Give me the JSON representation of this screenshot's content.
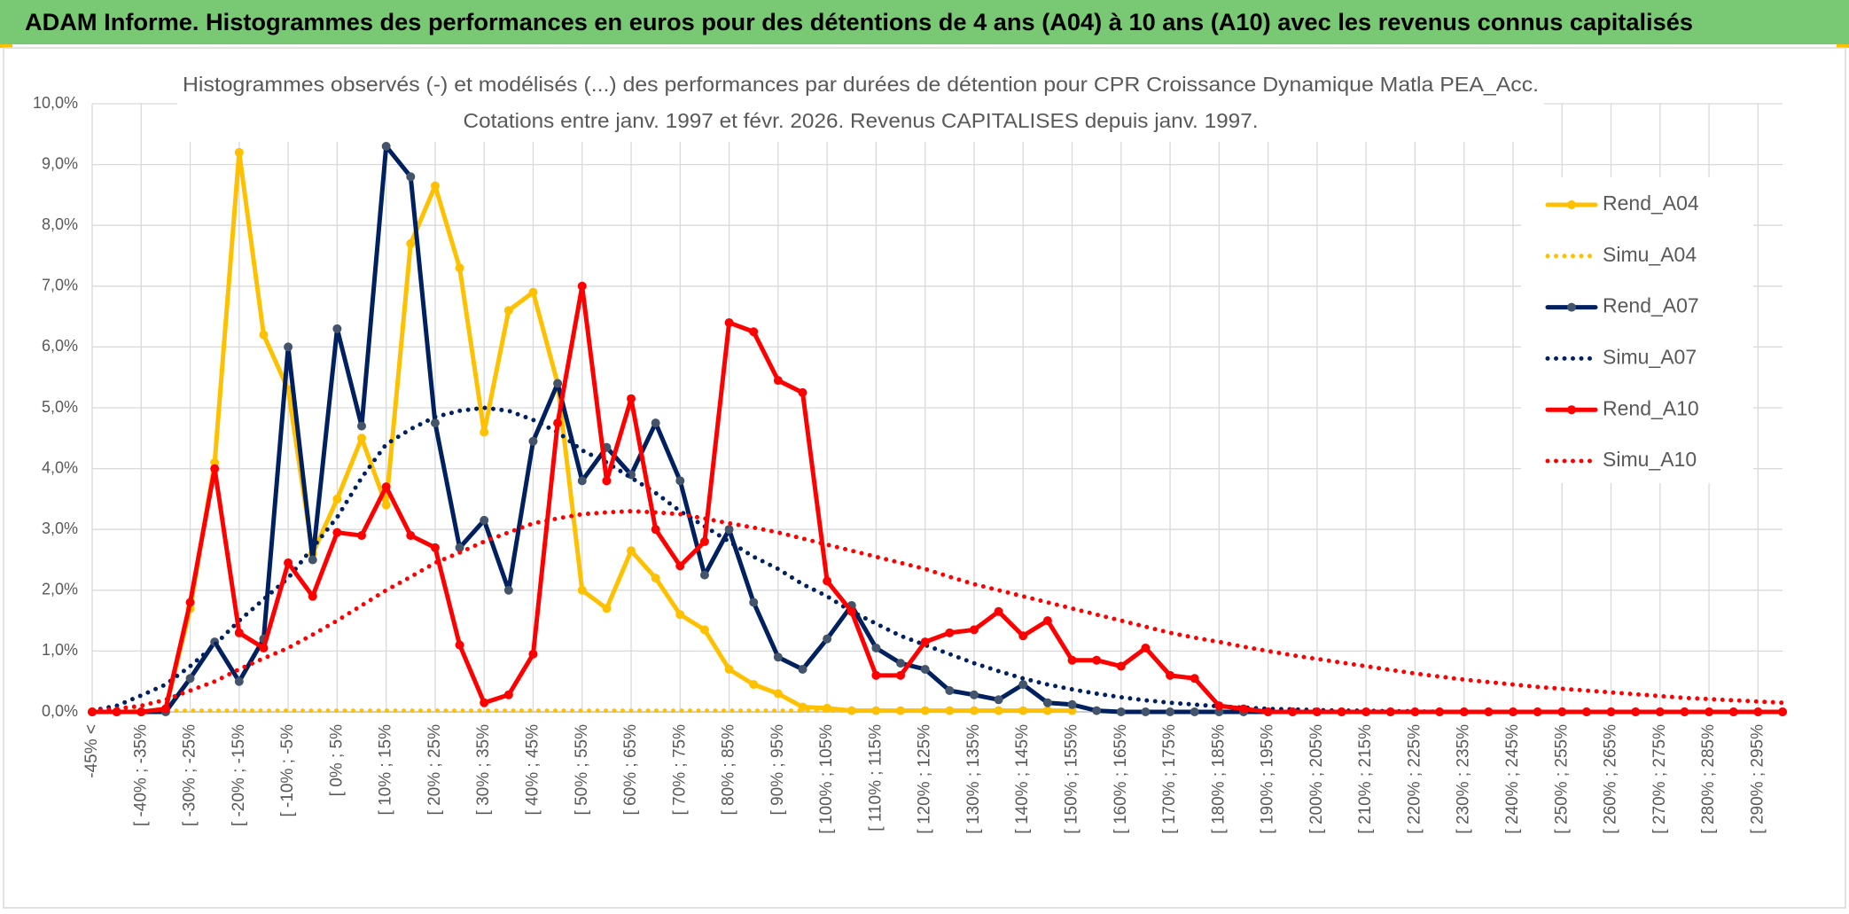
{
  "chart_data": {
    "type": "line",
    "title": "ADAM Informe. Histogrammes des performances en euros pour des détentions de 4 ans (A04) à 10 ans (A10) avec les revenus connus capitalisés",
    "subtitle": [
      "Histogrammes observés (-) et modélisés (...) des performances par durées de détention pour CPR Croissance Dynamique Matla PEA_Acc.",
      "Cotations entre janv. 1997 et févr. 2026. Revenus CAPITALISES depuis janv. 1997."
    ],
    "categories": [
      "-45% <",
      null,
      "[ -40% ; -35%",
      null,
      "[ -30% ; -25%",
      null,
      "[ -20% ; -15%",
      null,
      "[ -10% ; -5%",
      null,
      "[ 0% ; 5%",
      null,
      "[ 10% ; 15%",
      null,
      "[ 20% ; 25%",
      null,
      "[ 30% ; 35%",
      null,
      "[ 40% ; 45%",
      null,
      "[ 50% ; 55%",
      null,
      "[ 60% ; 65%",
      null,
      "[ 70% ; 75%",
      null,
      "[ 80% ; 85%",
      null,
      "[ 90% ; 95%",
      null,
      "[ 100% ; 105%",
      null,
      "[ 110% ; 115%",
      null,
      "[ 120% ; 125%",
      null,
      "[ 130% ; 135%",
      null,
      "[ 140% ; 145%",
      null,
      "[ 150% ; 155%",
      null,
      "[ 160% ; 165%",
      null,
      "[ 170% ; 175%",
      null,
      "[ 180% ; 185%",
      null,
      "[ 190% ; 195%",
      null,
      "[ 200% ; 205%",
      null,
      "[ 210% ; 215%",
      null,
      "[ 220% ; 225%",
      null,
      "[ 230% ; 235%",
      null,
      "[ 240% ; 245%",
      null,
      "[ 250% ; 255%",
      null,
      "[ 260% ; 265%",
      null,
      "[ 270% ; 275%",
      null,
      "[ 280% ; 285%",
      null,
      "[ 290% ; 295%",
      null
    ],
    "ylim": [
      0,
      10
    ],
    "yticks": [
      {
        "value": 0,
        "label": "0,0%"
      },
      {
        "value": 1,
        "label": "1,0%"
      },
      {
        "value": 2,
        "label": "2,0%"
      },
      {
        "value": 3,
        "label": "3,0%"
      },
      {
        "value": 4,
        "label": "4,0%"
      },
      {
        "value": 5,
        "label": "5,0%"
      },
      {
        "value": 6,
        "label": "6,0%"
      },
      {
        "value": 7,
        "label": "7,0%"
      },
      {
        "value": 8,
        "label": "8,0%"
      },
      {
        "value": 9,
        "label": "9,0%"
      },
      {
        "value": 10,
        "label": "10,0%"
      }
    ],
    "grid": true,
    "legend": "right",
    "series": [
      {
        "name": "Rend_A04",
        "color": "#FFC000",
        "line_style": "solid",
        "marker_color": "#FFC000",
        "values": [
          0,
          0,
          0,
          0.05,
          1.7,
          4.1,
          9.2,
          6.2,
          5.3,
          2.6,
          3.5,
          4.5,
          3.4,
          7.7,
          8.65,
          7.3,
          4.6,
          6.6,
          6.9,
          5.4,
          2.0,
          1.7,
          2.65,
          2.2,
          1.6,
          1.35,
          0.7,
          0.45,
          0.3,
          0.08,
          0.06,
          0.02,
          0.02,
          0.02,
          0.02,
          0.02,
          0.02,
          0.02,
          0.02,
          0.02,
          0.02,
          null,
          null,
          null,
          null,
          null,
          null,
          null,
          null,
          null,
          null,
          null,
          null,
          null,
          null,
          null,
          null,
          null,
          null,
          null,
          null,
          null,
          null,
          null,
          null,
          null,
          null,
          null,
          null,
          null
        ]
      },
      {
        "name": "Simu_A04",
        "color": "#FFC000",
        "line_style": "dotted",
        "values": [
          0.02,
          0.02,
          0.02,
          0.02,
          0.02,
          0.02,
          0.02,
          0.02,
          0.02,
          0.02,
          0.02,
          0.02,
          0.02,
          0.02,
          0.02,
          0.02,
          0.02,
          0.02,
          0.02,
          0.02,
          0.02,
          0.02,
          0.02,
          0.02,
          0.02,
          0.02,
          0.02,
          0.02,
          0.02,
          0.02,
          0.02,
          0.02,
          0.02,
          0.02,
          0.02,
          0.02,
          0.02,
          0.02,
          0.02,
          0.02,
          0.02,
          null,
          null,
          null,
          null,
          null,
          null,
          null,
          null,
          null,
          null,
          null,
          null,
          null,
          null,
          null,
          null,
          null,
          null,
          null,
          null,
          null,
          null,
          null,
          null,
          null,
          null,
          null,
          null,
          null
        ]
      },
      {
        "name": "Rend_A07",
        "color": "#002060",
        "line_style": "solid",
        "marker_color": "#44546A",
        "values": [
          0,
          0,
          0,
          0,
          0.55,
          1.15,
          0.5,
          1.2,
          6.0,
          2.5,
          6.3,
          4.7,
          9.3,
          8.8,
          4.75,
          2.7,
          3.15,
          2.0,
          4.45,
          5.4,
          3.8,
          4.35,
          3.9,
          4.75,
          3.8,
          2.25,
          3.0,
          1.8,
          0.9,
          0.7,
          1.2,
          1.75,
          1.05,
          0.8,
          0.7,
          0.35,
          0.28,
          0.2,
          0.45,
          0.15,
          0.12,
          0.02,
          0,
          0,
          0,
          0,
          0,
          0,
          0,
          0,
          0,
          0,
          0,
          0,
          0,
          0,
          0,
          0,
          0,
          0,
          0,
          0,
          0,
          0,
          0,
          0,
          0,
          0,
          0,
          0
        ]
      },
      {
        "name": "Simu_A07",
        "color": "#002060",
        "line_style": "dotted",
        "values": [
          0.02,
          0.1,
          0.27,
          0.45,
          0.75,
          1.1,
          1.5,
          1.85,
          2.2,
          2.7,
          3.2,
          3.85,
          4.4,
          4.65,
          4.85,
          4.95,
          5.0,
          4.95,
          4.8,
          4.6,
          4.3,
          4.1,
          3.85,
          3.6,
          3.3,
          3.05,
          2.8,
          2.55,
          2.35,
          2.1,
          1.9,
          1.65,
          1.45,
          1.25,
          1.1,
          0.95,
          0.8,
          0.67,
          0.55,
          0.45,
          0.37,
          0.3,
          0.24,
          0.19,
          0.15,
          0.12,
          0.09,
          0.07,
          0.05,
          0.04,
          0.03,
          0.02,
          0.02,
          0.01,
          0.01,
          0,
          0,
          0,
          0,
          0,
          0,
          0,
          0,
          0,
          0,
          0,
          0,
          0,
          0,
          0
        ]
      },
      {
        "name": "Rend_A10",
        "color": "#FF0000",
        "line_style": "solid",
        "marker_color": "#FF0000",
        "values": [
          0,
          0,
          0,
          0.05,
          1.8,
          4.0,
          1.3,
          1.05,
          2.45,
          1.9,
          2.95,
          2.9,
          3.7,
          2.9,
          2.7,
          1.1,
          0.15,
          0.28,
          0.95,
          4.75,
          7.0,
          3.8,
          5.15,
          3.0,
          2.4,
          2.8,
          6.4,
          6.25,
          5.45,
          5.25,
          2.15,
          1.65,
          0.6,
          0.6,
          1.15,
          1.3,
          1.35,
          1.65,
          1.25,
          1.5,
          0.85,
          0.85,
          0.75,
          1.05,
          0.6,
          0.55,
          0.1,
          0.05,
          0,
          0,
          0,
          0,
          0,
          0,
          0,
          0,
          0,
          0,
          0,
          0,
          0,
          0,
          0,
          0,
          0,
          0,
          0,
          0,
          0,
          0
        ]
      },
      {
        "name": "Simu_A10",
        "color": "#FF0000",
        "line_style": "dotted",
        "values": [
          0.02,
          0.05,
          0.1,
          0.2,
          0.35,
          0.5,
          0.7,
          0.88,
          1.05,
          1.27,
          1.5,
          1.75,
          2.0,
          2.22,
          2.45,
          2.62,
          2.8,
          2.95,
          3.1,
          3.18,
          3.25,
          3.28,
          3.3,
          3.28,
          3.25,
          3.18,
          3.1,
          3.03,
          2.95,
          2.85,
          2.75,
          2.65,
          2.55,
          2.45,
          2.35,
          2.22,
          2.1,
          2.0,
          1.9,
          1.8,
          1.7,
          1.6,
          1.5,
          1.4,
          1.3,
          1.22,
          1.15,
          1.07,
          1.0,
          0.93,
          0.87,
          0.81,
          0.75,
          0.69,
          0.63,
          0.58,
          0.53,
          0.49,
          0.45,
          0.41,
          0.38,
          0.35,
          0.32,
          0.29,
          0.26,
          0.23,
          0.21,
          0.19,
          0.17,
          0.15
        ]
      }
    ]
  }
}
